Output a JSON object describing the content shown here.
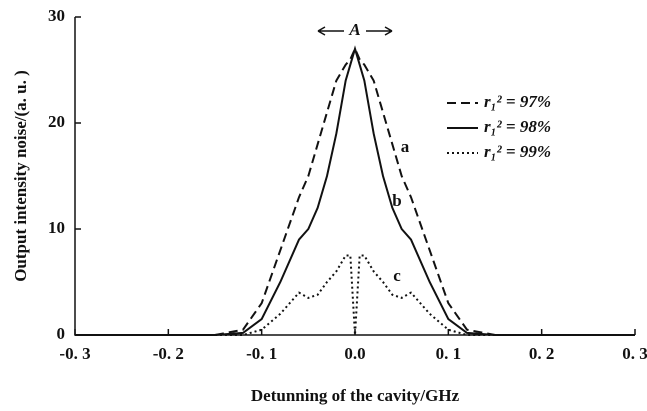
{
  "chart_data": {
    "type": "line",
    "x_label": "Detunning of the cavity/GHz",
    "y_label": "Output intensity noise/(a. u. )",
    "x": [
      -0.3,
      -0.15,
      -0.12,
      -0.1,
      -0.08,
      -0.06,
      -0.05,
      -0.04,
      -0.03,
      -0.02,
      -0.01,
      -0.005,
      0,
      0.005,
      0.01,
      0.02,
      0.03,
      0.04,
      0.05,
      0.06,
      0.08,
      0.1,
      0.12,
      0.15,
      0.3
    ],
    "series": [
      {
        "name": "r₁² = 97%",
        "color": "#111111",
        "dash": "9,5",
        "values": [
          0,
          0,
          0.5,
          3,
          8,
          13,
          15,
          18,
          21,
          24,
          25.5,
          26,
          27,
          26,
          25.5,
          24,
          21,
          18,
          15,
          13,
          8,
          3,
          0.5,
          0,
          0
        ]
      },
      {
        "name": "r₁² = 98%",
        "color": "#111111",
        "dash": "none",
        "values": [
          0,
          0,
          0.2,
          1.5,
          5,
          9,
          10,
          12,
          15,
          19,
          24,
          25.5,
          27,
          25.5,
          24,
          19,
          15,
          12,
          10,
          9,
          5,
          1.5,
          0.2,
          0,
          0
        ]
      },
      {
        "name": "r₁² = 99%",
        "color": "#111111",
        "dash": "2,3",
        "values": [
          0,
          0,
          0,
          0.5,
          2,
          4,
          3.5,
          3.8,
          5,
          6,
          7.5,
          7.5,
          0,
          7.5,
          7.5,
          6,
          5,
          3.8,
          3.5,
          4,
          2,
          0.5,
          0,
          0,
          0
        ]
      }
    ],
    "annotations": [
      "a",
      "b",
      "c",
      "A"
    ],
    "xlim": [
      -0.3,
      0.3
    ],
    "ylim": [
      0,
      30
    ],
    "xticks": [
      {
        "value": -0.3,
        "label": "-0. 3"
      },
      {
        "value": -0.2,
        "label": "-0. 2"
      },
      {
        "value": -0.1,
        "label": "-0. 1"
      },
      {
        "value": 0,
        "label": "0.0"
      },
      {
        "value": 0.1,
        "label": "0. 1"
      },
      {
        "value": 0.2,
        "label": "0. 2"
      },
      {
        "value": 0.3,
        "label": "0. 3"
      }
    ],
    "yticks": [
      0,
      10,
      20,
      30
    ],
    "legend": "upper right"
  }
}
